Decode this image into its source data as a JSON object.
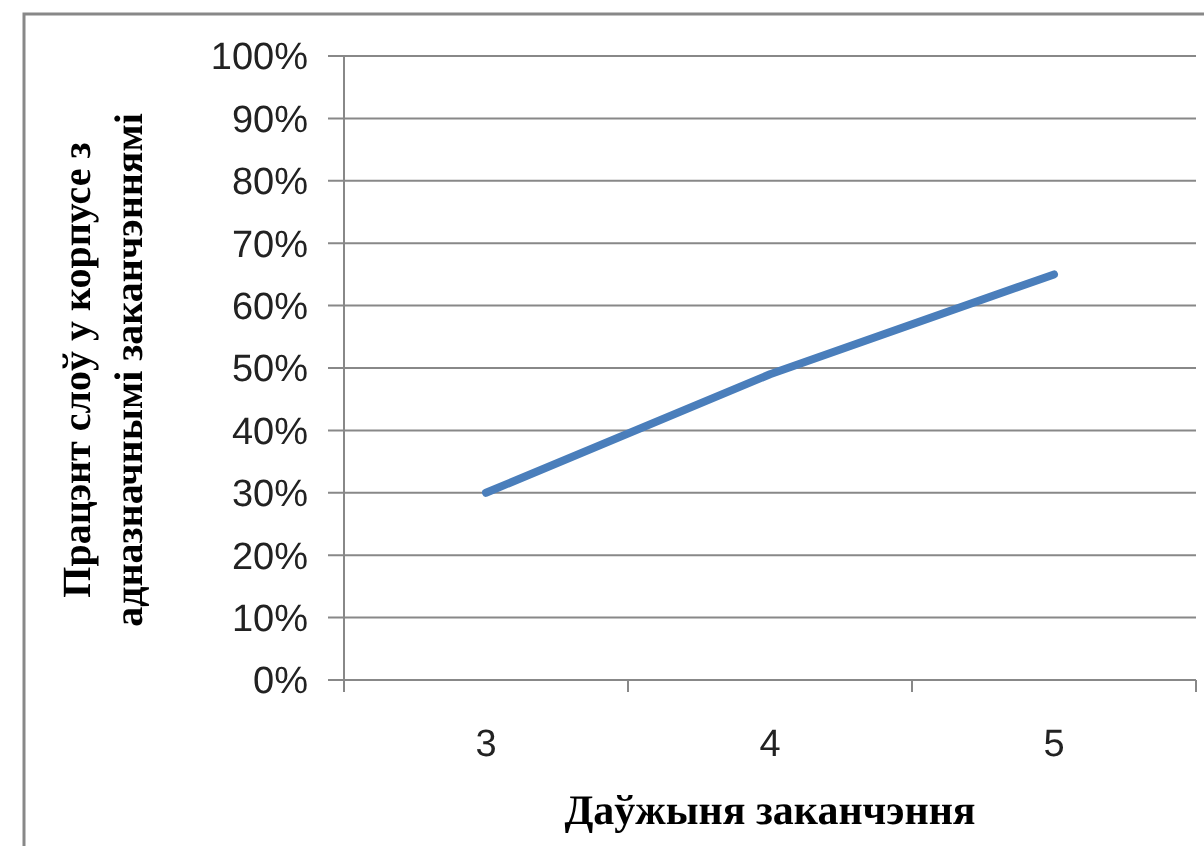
{
  "chart_data": {
    "type": "line",
    "xlabel": "Даўжыня заканчэння",
    "ylabel": "Працэнт слоў у корпусе з адназначнымі заканчэннямі",
    "categories": [
      "3",
      "4",
      "5"
    ],
    "series": [
      {
        "color": "#4a7ebb",
        "values": [
          30,
          49,
          65
        ]
      }
    ],
    "ylim": [
      0,
      100
    ],
    "yticks": [
      {
        "value": 0,
        "label": "0%"
      },
      {
        "value": 10,
        "label": "10%"
      },
      {
        "value": 20,
        "label": "20%"
      },
      {
        "value": 30,
        "label": "30%"
      },
      {
        "value": 40,
        "label": "40%"
      },
      {
        "value": 50,
        "label": "50%"
      },
      {
        "value": 60,
        "label": "60%"
      },
      {
        "value": 70,
        "label": "70%"
      },
      {
        "value": 80,
        "label": "80%"
      },
      {
        "value": 90,
        "label": "90%"
      },
      {
        "value": 100,
        "label": "100%"
      }
    ],
    "grid": "y",
    "marker": "none",
    "line_style": "solid"
  }
}
